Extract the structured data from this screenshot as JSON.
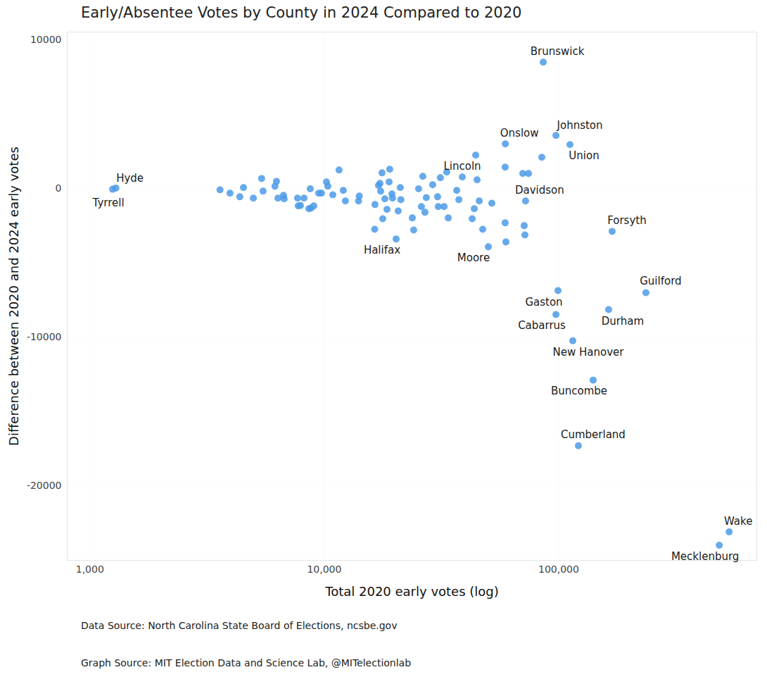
{
  "chart_data": {
    "type": "scatter",
    "title": "Early/Absentee Votes by County in 2024 Compared to 2020",
    "x_label": "Total 2020 early votes (log)",
    "y_label": "Difference between 2020 and 2024 early votes",
    "caption": [
      "Data Source: North Carolina State Board of Elections, ncsbe.gov",
      "Graph Source: MIT Election Data and Science Lab, @MITelectionlab"
    ],
    "log": "x",
    "grid": true,
    "color": "#4c9be8",
    "marker": "circle",
    "xlim": [
      800,
      700000
    ],
    "ylim": [
      -25000,
      10500
    ],
    "xticks": [
      {
        "value": 1000,
        "label": "1,000"
      },
      {
        "value": 10000,
        "label": "10,000"
      },
      {
        "value": 100000,
        "label": "100,000"
      }
    ],
    "yticks": [
      -20000,
      -10000,
      0,
      10000
    ],
    "x": [
      1250,
      1290,
      85900,
      97300,
      111700,
      59200,
      38800,
      72200,
      169000,
      20250,
      50100,
      99300,
      235500,
      97300,
      163300,
      114800,
      140300,
      121300,
      533400,
      484000,
      3590,
      3960,
      4360,
      4520,
      4980,
      5400,
      5480,
      6160,
      6250,
      6340,
      6700,
      6740,
      7690,
      7740,
      7910,
      8190,
      8590,
      8710,
      8770,
      9020,
      9460,
      9730,
      10210,
      10350,
      10870,
      11560,
      12050,
      12300,
      14000,
      14100,
      16450,
      16400,
      17030,
      17270,
      17390,
      17630,
      17750,
      18130,
      18510,
      18900,
      19020,
      19430,
      19550,
      20660,
      21090,
      21200,
      23730,
      24060,
      25250,
      25950,
      26320,
      26870,
      27240,
      28990,
      30420,
      30640,
      31280,
      32430,
      33790,
      33300,
      36720,
      37490,
      42740,
      43630,
      44240,
      44860,
      45800,
      47400,
      51850,
      59110,
      59100,
      59540,
      70270,
      71250,
      71750,
      74300,
      84700
    ],
    "values": [
      -60,
      20,
      8480,
      3550,
      2940,
      2990,
      760,
      -850,
      -2890,
      -3410,
      -3930,
      -6870,
      -7010,
      -8480,
      -8150,
      -10240,
      -12890,
      -17300,
      -23080,
      -23980,
      -100,
      -330,
      -570,
      50,
      -660,
      660,
      -190,
      140,
      470,
      -660,
      -470,
      -710,
      -660,
      -1180,
      -1150,
      -660,
      -1370,
      -30,
      -1330,
      -1180,
      -330,
      -330,
      430,
      140,
      -430,
      1230,
      -140,
      -850,
      -850,
      -520,
      -1090,
      -2750,
      190,
      330,
      -190,
      1040,
      -2040,
      -710,
      -1420,
      430,
      1280,
      -380,
      -660,
      -1520,
      50,
      -760,
      -1990,
      -2800,
      -30,
      -1230,
      810,
      -1610,
      -620,
      240,
      -570,
      -1230,
      710,
      -1230,
      -1990,
      1090,
      -140,
      -760,
      -2040,
      -1370,
      2230,
      570,
      -850,
      -2750,
      -1000,
      1420,
      -2320,
      -3600,
      1000,
      -2510,
      -3130,
      1000,
      2090
    ],
    "labels": [
      "Tyrrell",
      "Hyde",
      "Brunswick",
      "Johnston",
      "Union",
      "Onslow",
      "Lincoln",
      "Davidson",
      "Forsyth",
      "Halifax",
      "Moore",
      "Gaston",
      "Guilford",
      "Cabarrus",
      "Durham",
      "New Hanover",
      "Buncombe",
      "Cumberland",
      "Wake",
      "Mecklenburg",
      null,
      null,
      null,
      null,
      null,
      null,
      null,
      null,
      null,
      null,
      null,
      null,
      null,
      null,
      null,
      null,
      null,
      null,
      null,
      null,
      null,
      null,
      null,
      null,
      null,
      null,
      null,
      null,
      null,
      null,
      null,
      null,
      null,
      null,
      null,
      null,
      null,
      null,
      null,
      null,
      null,
      null,
      null,
      null,
      null,
      null,
      null,
      null,
      null,
      null,
      null,
      null,
      null,
      null,
      null,
      null,
      null,
      null,
      null,
      null,
      null,
      null,
      null,
      null,
      null,
      null,
      null,
      null,
      null,
      null,
      null,
      null,
      null
    ]
  }
}
